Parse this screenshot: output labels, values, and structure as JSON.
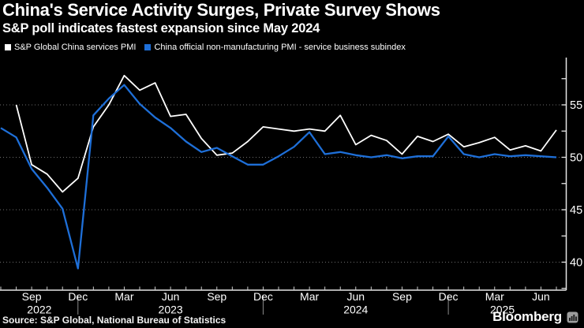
{
  "header": {
    "title": "China's Service Activity Surges, Private Survey Shows",
    "subtitle": "S&P poll indicates fastest expansion since May 2024"
  },
  "legend": {
    "items": [
      {
        "label": "S&P Global China services PMI",
        "color": "#ffffff"
      },
      {
        "label": "China official non-manufacturing PMI - service business subindex",
        "color": "#1e6fd8"
      }
    ]
  },
  "footer": {
    "source": "Source: S&P Global, National Bureau of Statistics",
    "brand": "Bloomberg",
    "brand_icon": "bar-chart-tile-icon"
  },
  "colors": {
    "background": "#000000",
    "text": "#ffffff",
    "series_sp_global": "#ffffff",
    "series_official": "#1e6fd8",
    "gridline": "#6e6e6e",
    "axis": "#e6e6e6",
    "year_divider": "#8a8a8a"
  },
  "chart_data": {
    "type": "line",
    "title": "China's Service Activity Surges, Private Survey Shows",
    "subtitle": "S&P poll indicates fastest expansion since May 2024",
    "legend_position": "top-left",
    "grid": "dotted horizontal lines at labeled y ticks",
    "x_months": [
      "2022-07",
      "2022-08",
      "2022-09",
      "2022-10",
      "2022-11",
      "2022-12",
      "2023-01",
      "2023-02",
      "2023-03",
      "2023-04",
      "2023-05",
      "2023-06",
      "2023-07",
      "2023-08",
      "2023-09",
      "2023-10",
      "2023-11",
      "2023-12",
      "2024-01",
      "2024-02",
      "2024-03",
      "2024-04",
      "2024-05",
      "2024-06",
      "2024-07",
      "2024-08",
      "2024-09",
      "2024-10",
      "2024-11",
      "2024-12",
      "2025-01",
      "2025-02",
      "2025-03",
      "2025-04",
      "2025-05",
      "2025-06",
      "2025-07"
    ],
    "series": [
      {
        "name": "S&P Global China services PMI",
        "color": "#ffffff",
        "stroke_width": 1.8,
        "values": [
          null,
          55.0,
          49.3,
          48.4,
          46.7,
          48.0,
          52.9,
          55.0,
          57.8,
          56.4,
          57.1,
          53.9,
          54.1,
          51.8,
          50.2,
          50.4,
          51.5,
          52.9,
          52.7,
          52.5,
          52.7,
          52.5,
          54.0,
          51.2,
          52.1,
          51.6,
          50.3,
          52.0,
          51.5,
          52.2,
          51.0,
          51.4,
          51.9,
          50.7,
          51.1,
          50.6,
          52.6
        ]
      },
      {
        "name": "China official non-manufacturing PMI - service business subindex",
        "color": "#1e6fd8",
        "stroke_width": 2.3,
        "values": [
          52.8,
          51.9,
          48.9,
          47.1,
          45.1,
          39.4,
          54.0,
          55.6,
          56.9,
          55.1,
          53.8,
          52.8,
          51.5,
          50.5,
          50.9,
          50.1,
          49.3,
          49.3,
          50.1,
          51.0,
          52.4,
          50.3,
          50.5,
          50.2,
          50.0,
          50.2,
          49.9,
          50.1,
          50.1,
          52.0,
          50.3,
          50.0,
          50.3,
          50.1,
          50.2,
          50.1,
          50.0
        ]
      }
    ],
    "ylim": [
      37.4,
      59.6
    ],
    "y_axis_side": "right",
    "axes": {
      "y_gridlines": [
        55,
        50,
        45,
        40
      ],
      "y_ticks": [
        57.5,
        55,
        52.5,
        50,
        47.5,
        45,
        42.5,
        40,
        37.5
      ],
      "y_tick_labels": [
        {
          "value": 55,
          "label": "55"
        },
        {
          "value": 50,
          "label": "50"
        },
        {
          "value": 45,
          "label": "45"
        },
        {
          "value": 40,
          "label": "40"
        }
      ],
      "x_tick_labels": [
        {
          "month_index": 2,
          "label": "Sep"
        },
        {
          "month_index": 5,
          "label": "Dec"
        },
        {
          "month_index": 8,
          "label": "Mar"
        },
        {
          "month_index": 11,
          "label": "Jun"
        },
        {
          "month_index": 14,
          "label": "Sep"
        },
        {
          "month_index": 17,
          "label": "Dec"
        },
        {
          "month_index": 20,
          "label": "Mar"
        },
        {
          "month_index": 23,
          "label": "Jun"
        },
        {
          "month_index": 26,
          "label": "Sep"
        },
        {
          "month_index": 29,
          "label": "Dec"
        },
        {
          "month_index": 32,
          "label": "Mar"
        },
        {
          "month_index": 35,
          "label": "Jun"
        }
      ],
      "year_labels": [
        {
          "label": "2022",
          "month_mid": 2.5
        },
        {
          "label": "2023",
          "month_mid": 11
        },
        {
          "label": "2024",
          "month_mid": 23
        },
        {
          "label": "2025",
          "month_mid": 32.5
        }
      ],
      "year_divider_month_indices": [
        5,
        17,
        29
      ]
    }
  }
}
